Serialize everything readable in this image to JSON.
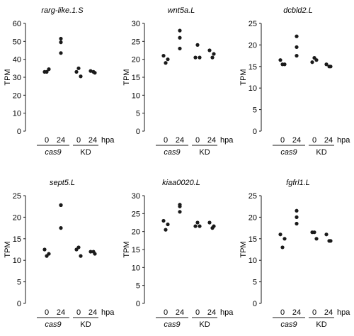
{
  "shared": {
    "ylabel": "TPM",
    "x_tick_labels": [
      "0",
      "24",
      "0",
      "24"
    ],
    "x_unit": "hpa",
    "groups": [
      "cas9",
      "KD"
    ]
  },
  "chart_data": [
    {
      "type": "scatter",
      "title": "rarg-like.1.S",
      "ylabel": "TPM",
      "ylim": [
        0,
        60
      ],
      "yticks": [
        0,
        10,
        20,
        30,
        40,
        50,
        60
      ],
      "categories": [
        "cas9 0",
        "cas9 24",
        "KD 0",
        "KD 24"
      ],
      "points": [
        [
          33,
          34.5,
          33
        ],
        [
          51.5,
          49.5,
          43.5
        ],
        [
          35,
          33,
          30.5
        ],
        [
          33.5,
          32.5,
          33
        ]
      ]
    },
    {
      "type": "scatter",
      "title": "wnt5a.L",
      "ylabel": "TPM",
      "ylim": [
        0,
        30
      ],
      "yticks": [
        0,
        5,
        10,
        15,
        20,
        25,
        30
      ],
      "categories": [
        "cas9 0",
        "cas9 24",
        "KD 0",
        "KD 24"
      ],
      "points": [
        [
          21,
          20,
          19
        ],
        [
          28,
          26,
          23
        ],
        [
          24,
          20.5,
          20.5
        ],
        [
          22.5,
          21.5,
          20.5
        ]
      ]
    },
    {
      "type": "scatter",
      "title": "dcbld2.L",
      "ylabel": "TPM",
      "ylim": [
        0,
        25
      ],
      "yticks": [
        0,
        5,
        10,
        15,
        20,
        25
      ],
      "categories": [
        "cas9 0",
        "cas9 24",
        "KD 0",
        "KD 24"
      ],
      "points": [
        [
          16.5,
          15.5,
          15.5
        ],
        [
          22,
          19.5,
          17.5
        ],
        [
          17,
          16,
          16.5
        ],
        [
          15.5,
          15,
          15
        ]
      ]
    },
    {
      "type": "scatter",
      "title": "sept5.L",
      "ylabel": "TPM",
      "ylim": [
        0,
        25
      ],
      "yticks": [
        0,
        5,
        10,
        15,
        20,
        25
      ],
      "categories": [
        "cas9 0",
        "cas9 24",
        "KD 0",
        "KD 24"
      ],
      "points": [
        [
          12.5,
          11.5,
          11
        ],
        [
          22.8,
          22.8,
          17.5
        ],
        [
          13,
          12.5,
          11
        ],
        [
          12,
          11.5,
          12
        ]
      ]
    },
    {
      "type": "scatter",
      "title": "kiaa0020.L",
      "ylabel": "TPM",
      "ylim": [
        0,
        30
      ],
      "yticks": [
        0,
        5,
        10,
        15,
        20,
        25,
        30
      ],
      "categories": [
        "cas9 0",
        "cas9 24",
        "KD 0",
        "KD 24"
      ],
      "points": [
        [
          23,
          22,
          20.5
        ],
        [
          27,
          27.5,
          25.5
        ],
        [
          22.5,
          21.5,
          21.5
        ],
        [
          22.5,
          21.5,
          21
        ]
      ]
    },
    {
      "type": "scatter",
      "title": "fgfrl1.L",
      "ylabel": "TPM",
      "ylim": [
        0,
        25
      ],
      "yticks": [
        0,
        5,
        10,
        15,
        20,
        25
      ],
      "categories": [
        "cas9 0",
        "cas9 24",
        "KD 0",
        "KD 24"
      ],
      "points": [
        [
          16,
          15,
          13
        ],
        [
          21.5,
          20,
          18.5
        ],
        [
          16.5,
          16.5,
          15
        ],
        [
          16,
          14.5,
          14.5
        ]
      ]
    }
  ]
}
